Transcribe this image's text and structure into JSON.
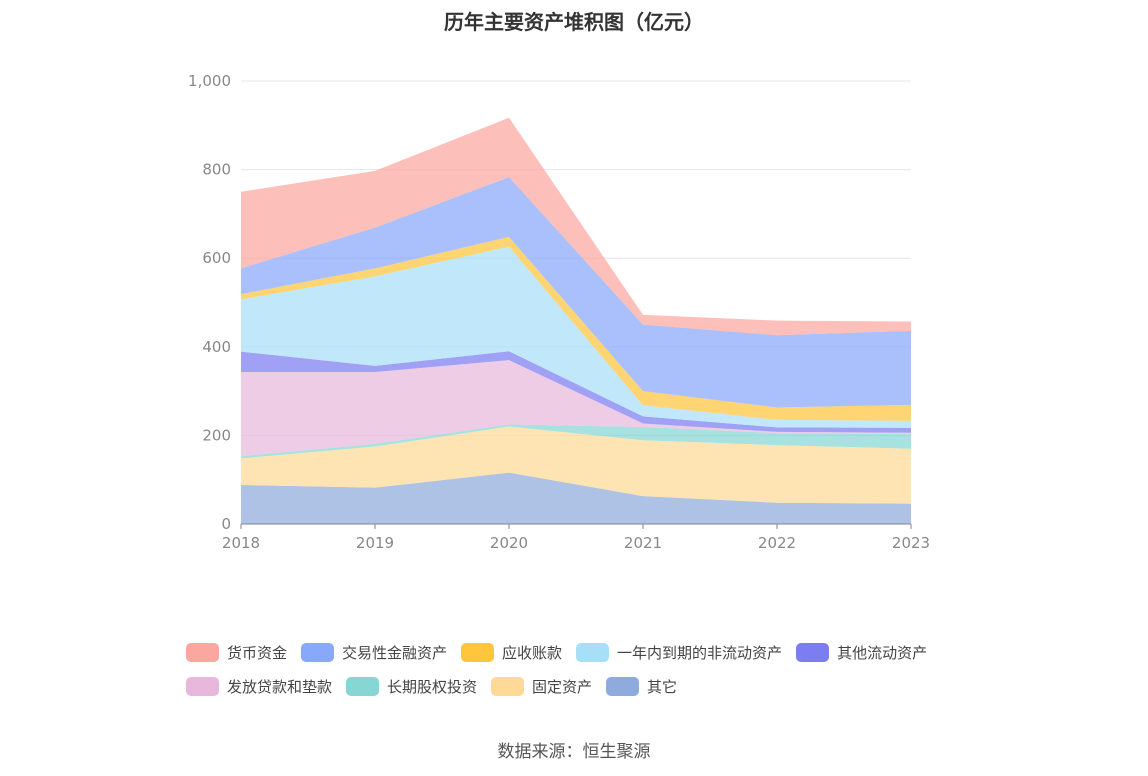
{
  "chart_data": {
    "type": "area",
    "stacked": true,
    "title": "历年主要资产堆积图（亿元）",
    "x": [
      "2018",
      "2019",
      "2020",
      "2021",
      "2022",
      "2023"
    ],
    "y_ticks": [
      "0",
      "200",
      "400",
      "600",
      "800",
      "1,000"
    ],
    "ylim": [
      0,
      1000
    ],
    "grid": true,
    "legend_position": "bottom",
    "series": [
      {
        "name": "其它",
        "color": "#8faadc",
        "values": [
          88,
          82,
          116,
          63,
          48,
          46
        ]
      },
      {
        "name": "固定资产",
        "color": "#ffd995",
        "values": [
          60,
          93,
          104,
          126,
          130,
          124
        ]
      },
      {
        "name": "长期股权投资",
        "color": "#85d6d4",
        "values": [
          5,
          6,
          5,
          30,
          27,
          33
        ]
      },
      {
        "name": "发放贷款和垫款",
        "color": "#e8b8dc",
        "values": [
          190,
          162,
          145,
          8,
          3,
          3
        ]
      },
      {
        "name": "其他流动资产",
        "color": "#7b7df0",
        "values": [
          46,
          14,
          20,
          16,
          10,
          11
        ]
      },
      {
        "name": "一年内到期的非流动资产",
        "color": "#a8dff8",
        "values": [
          118,
          202,
          236,
          25,
          17,
          16
        ]
      },
      {
        "name": "应收账款",
        "color": "#ffc53d",
        "values": [
          12,
          18,
          22,
          32,
          28,
          36
        ]
      },
      {
        "name": "交易性金融资产",
        "color": "#88a8fb",
        "values": [
          58,
          92,
          135,
          150,
          163,
          167
        ]
      },
      {
        "name": "货币资金",
        "color": "#fba69f",
        "values": [
          173,
          128,
          134,
          22,
          33,
          21
        ]
      }
    ]
  },
  "legend_rows": [
    [
      "货币资金",
      "交易性金融资产",
      "应收账款",
      "一年内到期的非流动资产",
      "其他流动资产"
    ],
    [
      "发放贷款和垫款",
      "长期股权投资",
      "固定资产",
      "其它"
    ]
  ],
  "source": "数据来源：恒生聚源"
}
